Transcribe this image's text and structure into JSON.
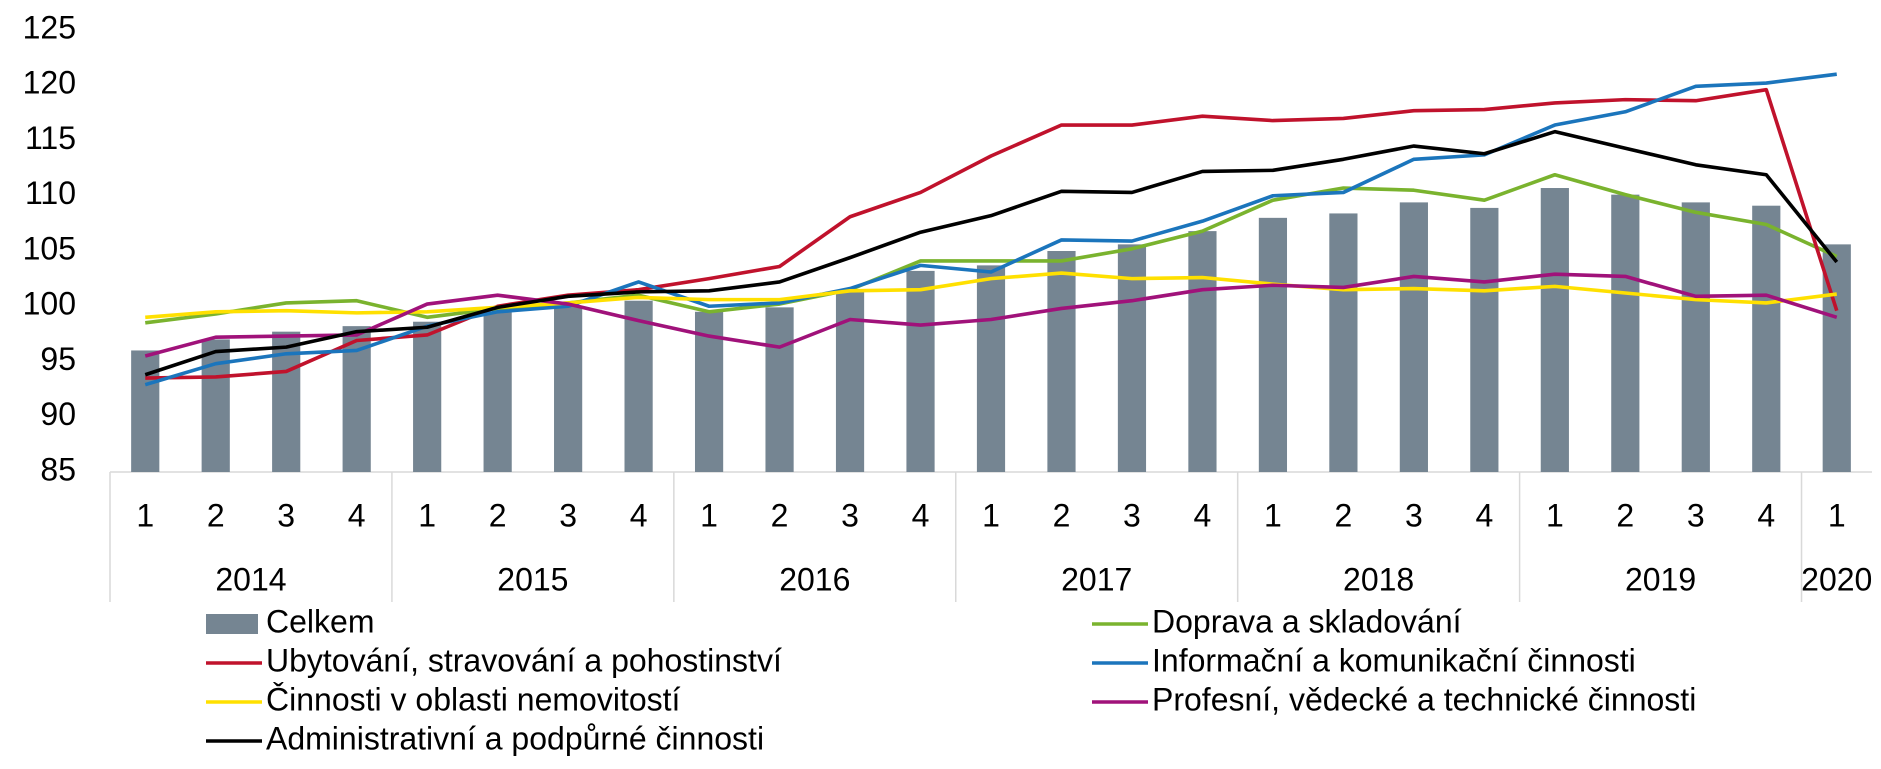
{
  "chart_data": {
    "type": "bar_line",
    "groups": [
      {
        "name": "2014",
        "categories": [
          "1",
          "2",
          "3",
          "4"
        ]
      },
      {
        "name": "2015",
        "categories": [
          "1",
          "2",
          "3",
          "4"
        ]
      },
      {
        "name": "2016",
        "categories": [
          "1",
          "2",
          "3",
          "4"
        ]
      },
      {
        "name": "2017",
        "categories": [
          "1",
          "2",
          "3",
          "4"
        ]
      },
      {
        "name": "2018",
        "categories": [
          "1",
          "2",
          "3",
          "4"
        ]
      },
      {
        "name": "2019",
        "categories": [
          "1",
          "2",
          "3",
          "4"
        ]
      },
      {
        "name": "2020",
        "categories": [
          "1"
        ]
      }
    ],
    "ylim": [
      85,
      125
    ],
    "yticks": [
      85,
      90,
      95,
      100,
      105,
      110,
      115,
      120,
      125
    ],
    "grid": false,
    "series": [
      {
        "name": "Celkem",
        "type": "bar",
        "color": "#758592",
        "values": [
          96.0,
          97.0,
          97.7,
          98.2,
          98.6,
          99.5,
          100.0,
          100.5,
          99.5,
          99.9,
          101.5,
          103.2,
          103.7,
          105.0,
          105.6,
          106.8,
          108.0,
          108.4,
          109.4,
          108.9,
          110.7,
          110.1,
          109.4,
          109.1,
          105.6
        ]
      },
      {
        "name": "Doprava a skladování",
        "type": "line",
        "color": "#7ab32e",
        "values": [
          98.5,
          99.3,
          100.3,
          100.5,
          99.0,
          99.8,
          100.3,
          101.0,
          99.5,
          100.2,
          101.5,
          104.1,
          104.1,
          104.1,
          105.2,
          106.8,
          109.6,
          110.7,
          110.5,
          109.6,
          111.9,
          110.1,
          108.5,
          107.4,
          104.5
        ]
      },
      {
        "name": "Ubytování, stravování a pohostinství",
        "type": "line",
        "color": "#c0122c",
        "values": [
          93.5,
          93.6,
          94.1,
          96.9,
          97.4,
          100.0,
          101.0,
          101.5,
          102.5,
          103.6,
          108.1,
          110.3,
          113.6,
          116.4,
          116.4,
          117.2,
          116.8,
          117.0,
          117.7,
          117.8,
          118.4,
          118.7,
          118.6,
          119.6,
          99.6
        ]
      },
      {
        "name": "Informační a komunikační činnosti",
        "type": "line",
        "color": "#1b75bc",
        "values": [
          92.9,
          94.8,
          95.7,
          96.0,
          98.2,
          99.5,
          100.0,
          102.2,
          100.0,
          100.3,
          101.6,
          103.7,
          103.1,
          106.0,
          105.9,
          107.7,
          110.0,
          110.3,
          113.3,
          113.7,
          116.4,
          117.6,
          119.9,
          120.2,
          121.0
        ]
      },
      {
        "name": "Činnosti v oblasti nemovitostí",
        "type": "line",
        "color": "#ffe000",
        "values": [
          99.0,
          99.5,
          99.6,
          99.4,
          99.5,
          99.9,
          100.3,
          100.8,
          100.6,
          100.6,
          101.4,
          101.5,
          102.5,
          103.0,
          102.5,
          102.6,
          102.0,
          101.5,
          101.6,
          101.4,
          101.8,
          101.2,
          100.6,
          100.3,
          101.1
        ]
      },
      {
        "name": "Profesní, vědecké a technické činnosti",
        "type": "line",
        "color": "#a0127a",
        "values": [
          95.5,
          97.2,
          97.3,
          97.4,
          100.2,
          101.0,
          100.2,
          98.7,
          97.3,
          96.3,
          98.8,
          98.3,
          98.8,
          99.8,
          100.5,
          101.5,
          101.9,
          101.7,
          102.7,
          102.2,
          102.9,
          102.7,
          100.9,
          101.0,
          99.0
        ]
      },
      {
        "name": "Administrativní a podpůrné činnosti",
        "type": "line",
        "color": "#000000",
        "values": [
          93.8,
          95.9,
          96.3,
          97.7,
          98.1,
          99.9,
          100.9,
          101.3,
          101.4,
          102.2,
          104.4,
          106.7,
          108.2,
          110.4,
          110.3,
          112.2,
          112.3,
          113.3,
          114.5,
          113.8,
          115.8,
          114.3,
          112.8,
          111.9,
          104.0
        ]
      }
    ]
  }
}
